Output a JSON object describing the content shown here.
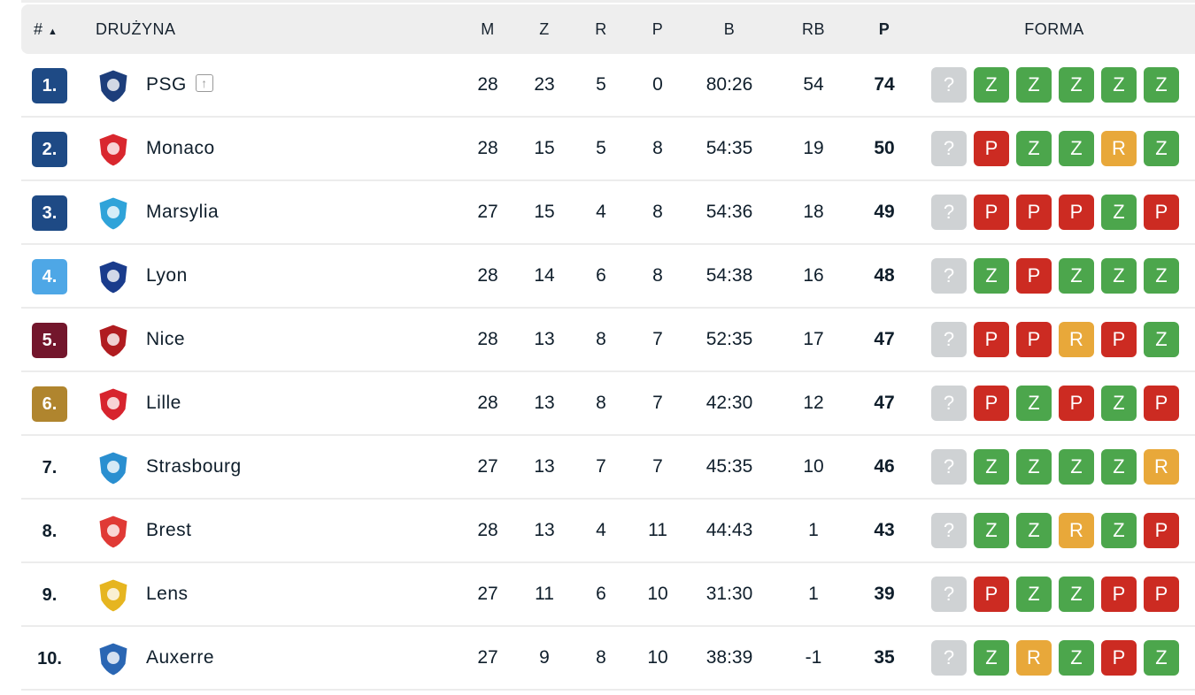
{
  "header": {
    "rank": "#",
    "sort_icon": "triangle-up-icon",
    "team": "DRUŻYNA",
    "m": "M",
    "z": "Z",
    "r": "R",
    "p": "P",
    "b": "B",
    "rb": "RB",
    "pts": "P",
    "form": "FORMA"
  },
  "colors": {
    "Z": "#4ca64c",
    "P": "#cc2b22",
    "R": "#e8a83a",
    "?": "#cfd2d4"
  },
  "teams": [
    {
      "rank": "1.",
      "badge": "#1e4a85",
      "name": "PSG",
      "up": true,
      "logo": "#1d3e7b",
      "m": "28",
      "z": "23",
      "r": "5",
      "p": "0",
      "b": "80:26",
      "rb": "54",
      "pts": "74",
      "form": [
        "?",
        "Z",
        "Z",
        "Z",
        "Z",
        "Z"
      ]
    },
    {
      "rank": "2.",
      "badge": "#1e4a85",
      "name": "Monaco",
      "logo": "#d9272e",
      "m": "28",
      "z": "15",
      "r": "5",
      "p": "8",
      "b": "54:35",
      "rb": "19",
      "pts": "50",
      "form": [
        "?",
        "P",
        "Z",
        "Z",
        "R",
        "Z"
      ]
    },
    {
      "rank": "3.",
      "badge": "#1e4a85",
      "name": "Marsylia",
      "logo": "#2fa3d9",
      "m": "27",
      "z": "15",
      "r": "4",
      "p": "8",
      "b": "54:36",
      "rb": "18",
      "pts": "49",
      "form": [
        "?",
        "P",
        "P",
        "P",
        "Z",
        "P"
      ]
    },
    {
      "rank": "4.",
      "badge": "#4ea7e6",
      "name": "Lyon",
      "logo": "#1a3c8c",
      "m": "28",
      "z": "14",
      "r": "6",
      "p": "8",
      "b": "54:38",
      "rb": "16",
      "pts": "48",
      "form": [
        "?",
        "Z",
        "P",
        "Z",
        "Z",
        "Z"
      ]
    },
    {
      "rank": "5.",
      "badge": "#73162c",
      "name": "Nice",
      "logo": "#b01c20",
      "m": "28",
      "z": "13",
      "r": "8",
      "p": "7",
      "b": "52:35",
      "rb": "17",
      "pts": "47",
      "form": [
        "?",
        "P",
        "P",
        "R",
        "P",
        "Z"
      ]
    },
    {
      "rank": "6.",
      "badge": "#b0852e",
      "name": "Lille",
      "logo": "#d7242e",
      "m": "28",
      "z": "13",
      "r": "8",
      "p": "7",
      "b": "42:30",
      "rb": "12",
      "pts": "47",
      "form": [
        "?",
        "P",
        "Z",
        "P",
        "Z",
        "P"
      ]
    },
    {
      "rank": "7.",
      "badge": "",
      "name": "Strasbourg",
      "logo": "#2a8fd0",
      "m": "27",
      "z": "13",
      "r": "7",
      "p": "7",
      "b": "45:35",
      "rb": "10",
      "pts": "46",
      "form": [
        "?",
        "Z",
        "Z",
        "Z",
        "Z",
        "R"
      ]
    },
    {
      "rank": "8.",
      "badge": "",
      "name": "Brest",
      "logo": "#e03a36",
      "m": "28",
      "z": "13",
      "r": "4",
      "p": "11",
      "b": "44:43",
      "rb": "1",
      "pts": "43",
      "form": [
        "?",
        "Z",
        "Z",
        "R",
        "Z",
        "P"
      ]
    },
    {
      "rank": "9.",
      "badge": "",
      "name": "Lens",
      "logo": "#e6b520",
      "m": "27",
      "z": "11",
      "r": "6",
      "p": "10",
      "b": "31:30",
      "rb": "1",
      "pts": "39",
      "form": [
        "?",
        "P",
        "Z",
        "Z",
        "P",
        "P"
      ]
    },
    {
      "rank": "10.",
      "badge": "",
      "name": "Auxerre",
      "logo": "#2a66b3",
      "m": "27",
      "z": "9",
      "r": "8",
      "p": "10",
      "b": "38:39",
      "rb": "-1",
      "pts": "35",
      "form": [
        "?",
        "Z",
        "R",
        "Z",
        "P",
        "Z"
      ]
    }
  ]
}
